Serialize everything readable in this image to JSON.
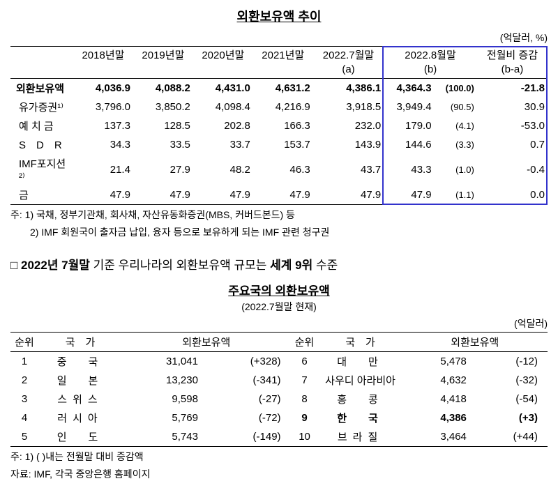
{
  "table1": {
    "title": "외환보유액 추이",
    "unit": "(억달러, %)",
    "headers": [
      "",
      "2018년말",
      "2019년말",
      "2020년말",
      "2021년말",
      "2022.7월말\n(a)",
      "2022.8월말\n(b)",
      "전월비 증감\n(b-a)"
    ],
    "rows": [
      {
        "label": "외환보유액",
        "bold": true,
        "values": [
          "4,036.9",
          "4,088.2",
          "4,431.0",
          "4,631.2",
          "4,386.1",
          "4,364.3",
          "(100.0)",
          "-21.8"
        ]
      },
      {
        "label": "유가증권¹⁾",
        "bold": false,
        "values": [
          "3,796.0",
          "3,850.2",
          "4,098.4",
          "4,216.9",
          "3,918.5",
          "3,949.4",
          "(90.5)",
          "30.9"
        ]
      },
      {
        "label": "예 치 금",
        "bold": false,
        "values": [
          "137.3",
          "128.5",
          "202.8",
          "166.3",
          "232.0",
          "179.0",
          "(4.1)",
          "-53.0"
        ]
      },
      {
        "label": "S　D　R",
        "bold": false,
        "values": [
          "34.3",
          "33.5",
          "33.7",
          "153.7",
          "143.9",
          "144.6",
          "(3.3)",
          "0.7"
        ]
      },
      {
        "label": "IMF포지션²⁾",
        "bold": false,
        "values": [
          "21.4",
          "27.9",
          "48.2",
          "46.3",
          "43.7",
          "43.3",
          "(1.0)",
          "-0.4"
        ]
      },
      {
        "label": "금",
        "bold": false,
        "values": [
          "47.9",
          "47.9",
          "47.9",
          "47.9",
          "47.9",
          "47.9",
          "(1.1)",
          "0.0"
        ]
      }
    ],
    "note1": "주: 1) 국채, 정부기관채, 회사채, 자산유동화증권(MBS, 커버드본드) 등",
    "note2": "　　2) IMF 회원국이 출자금 납입, 융자 등으로 보유하게 되는 IMF 관련 청구권",
    "highlight_color": "#3333cc"
  },
  "section": {
    "prefix": "□ ",
    "bold1": "2022년 7월말",
    "mid": " 기준 우리나라의 외환보유액 규모는 ",
    "bold2": "세계 9위",
    "suffix": " 수준"
  },
  "table2": {
    "title": "주요국의 외환보유액",
    "title_note": "(2022.7월말 현재)",
    "unit": "(억달러)",
    "headers": [
      "순위",
      "국　가",
      "외환보유액",
      "순위",
      "국　가",
      "외환보유액"
    ],
    "left": [
      {
        "rank": "1",
        "country": "중　국",
        "amount": "31,041",
        "change": "(+328)",
        "bold": false
      },
      {
        "rank": "2",
        "country": "일　본",
        "amount": "13,230",
        "change": "(-341)",
        "bold": false
      },
      {
        "rank": "3",
        "country": "스위스",
        "amount": "9,598",
        "change": "(-27)",
        "bold": false
      },
      {
        "rank": "4",
        "country": "러시아",
        "amount": "5,769",
        "change": "(-72)",
        "bold": false
      },
      {
        "rank": "5",
        "country": "인　도",
        "amount": "5,743",
        "change": "(-149)",
        "bold": false
      }
    ],
    "right": [
      {
        "rank": "6",
        "country": "대　만",
        "amount": "5,478",
        "change": "(-12)",
        "bold": false
      },
      {
        "rank": "7",
        "country": "사우디 아라비아",
        "amount": "4,632",
        "change": "(-32)",
        "bold": false,
        "tight": true
      },
      {
        "rank": "8",
        "country": "홍　콩",
        "amount": "4,418",
        "change": "(-54)",
        "bold": false
      },
      {
        "rank": "9",
        "country": "한　국",
        "amount": "4,386",
        "change": "(+3)",
        "bold": true
      },
      {
        "rank": "10",
        "country": "브라질",
        "amount": "3,464",
        "change": "(+44)",
        "bold": false
      }
    ],
    "note1": "주: 1) (  )내는 전월말 대비 증감액",
    "note2": "자료: IMF, 각국 중앙은행 홈페이지"
  }
}
